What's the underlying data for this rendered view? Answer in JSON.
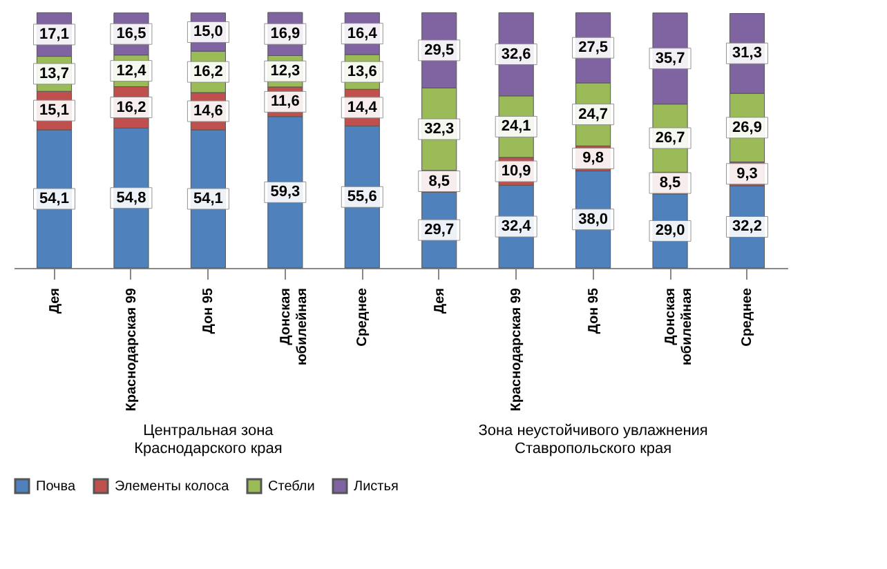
{
  "chart_data": {
    "type": "bar",
    "stacked": true,
    "legend": "bottom",
    "categories": [
      "Дея",
      "Краснодарская 99",
      "Дон 95",
      "Донская\nюбилейная",
      "Среднее",
      "Дея",
      "Краснодарская 99",
      "Дон 95",
      "Донская\nюбилейная",
      "Среднее"
    ],
    "series": [
      {
        "name": "Почва",
        "color": "#4f81bd",
        "values": [
          54.1,
          54.8,
          54.1,
          59.3,
          55.6,
          29.7,
          32.4,
          38.0,
          29.0,
          32.2
        ],
        "value_labels": [
          "54,1",
          "54,8",
          "54,1",
          "59,3",
          "55,6",
          "29,7",
          "32,4",
          "38,0",
          "29,0",
          "32,2"
        ]
      },
      {
        "name": "Элементы колоса",
        "color": "#c0504d",
        "values": [
          15.1,
          16.2,
          14.6,
          11.6,
          14.4,
          8.5,
          10.9,
          9.8,
          8.5,
          9.3
        ],
        "value_labels": [
          "15,1",
          "16,2",
          "14,6",
          "11,6",
          "14,4",
          "8,5",
          "10,9",
          "9,8",
          "8,5",
          "9,3"
        ]
      },
      {
        "name": "Стебли",
        "color": "#9bbb59",
        "values": [
          13.7,
          12.4,
          16.2,
          12.3,
          13.6,
          32.3,
          24.1,
          24.7,
          26.7,
          26.9
        ],
        "value_labels": [
          "13,7",
          "12,4",
          "16,2",
          "12,3",
          "13,6",
          "32,3",
          "24,1",
          "24,7",
          "26,7",
          "26,9"
        ]
      },
      {
        "name": "Листья",
        "color": "#8064a2",
        "values": [
          17.1,
          16.5,
          15.0,
          16.9,
          16.4,
          29.5,
          32.6,
          27.5,
          35.7,
          31.3
        ],
        "value_labels": [
          "17,1",
          "16,5",
          "15,0",
          "16,9",
          "16,4",
          "29,5",
          "32,6",
          "27,5",
          "35,7",
          "31,3"
        ]
      }
    ],
    "annotations": [
      "Центральная зона\nКраснодарского края",
      "Зона неустойчивого увлажнения\nСтавропольского края"
    ]
  }
}
